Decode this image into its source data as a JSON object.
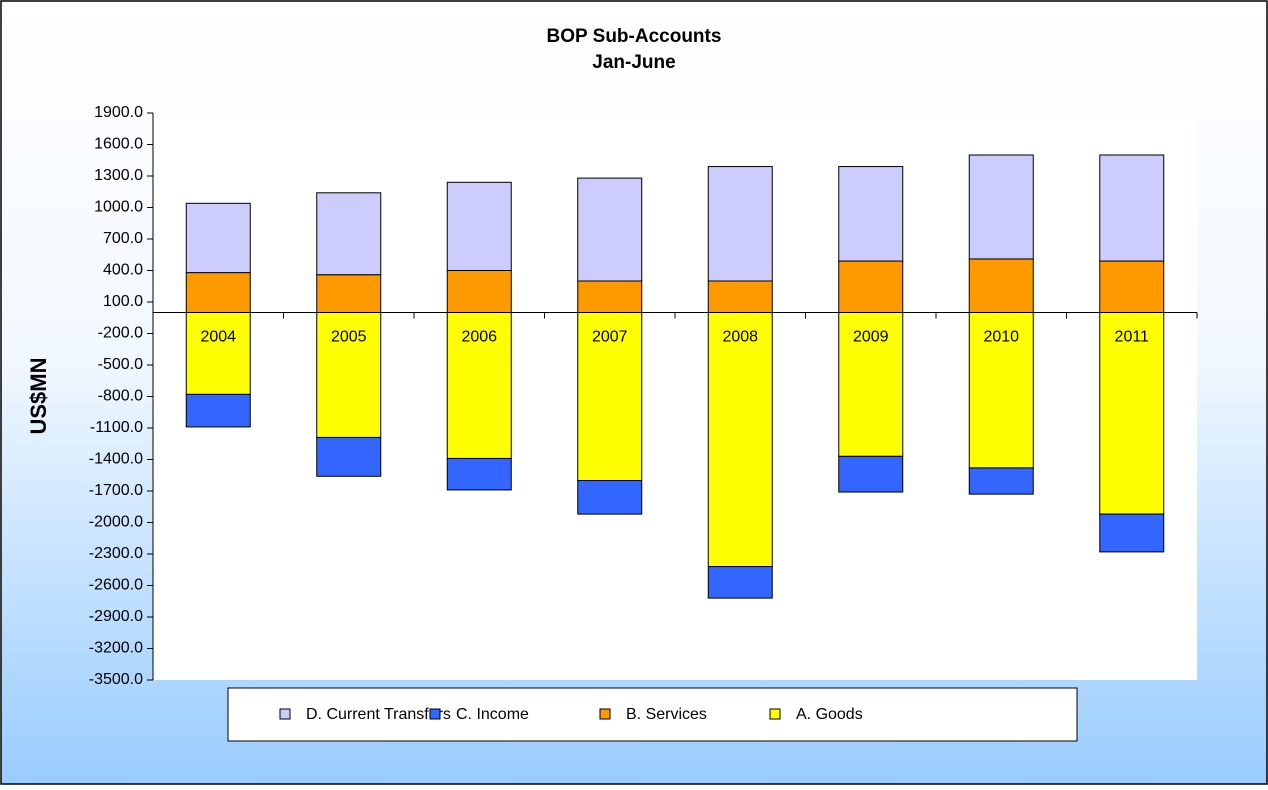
{
  "chart_data": {
    "type": "stacked_bar",
    "title": "BOP Sub-Accounts",
    "subtitle": "Jan-June",
    "y_label": "US$MN",
    "categories": [
      "2004",
      "2005",
      "2006",
      "2007",
      "2008",
      "2009",
      "2010",
      "2011"
    ],
    "series": [
      {
        "name": "D. Current Transfers",
        "color": "#ccccff",
        "values": [
          660,
          780,
          840,
          980,
          1090,
          900,
          990,
          1010
        ]
      },
      {
        "name": "C. Income",
        "color": "#3366ff",
        "values": [
          -310,
          -370,
          -300,
          -320,
          -300,
          -340,
          -250,
          -360
        ]
      },
      {
        "name": "B. Services",
        "color": "#ff9900",
        "values": [
          380,
          360,
          400,
          300,
          300,
          490,
          510,
          490
        ]
      },
      {
        "name": "A. Goods",
        "color": "#ffff00",
        "values": [
          -780,
          -1190,
          -1390,
          -1600,
          -2420,
          -1370,
          -1480,
          -1920
        ]
      }
    ],
    "ylim": [
      -3500,
      1900
    ],
    "yticks": [
      {
        "value": 1900,
        "label": "1900.0"
      },
      {
        "value": 1600,
        "label": "1600.0"
      },
      {
        "value": 1300,
        "label": "1300.0"
      },
      {
        "value": 1000,
        "label": "1000.0"
      },
      {
        "value": 700,
        "label": "700.0"
      },
      {
        "value": 400,
        "label": "400.0"
      },
      {
        "value": 100,
        "label": "100.0"
      },
      {
        "value": -200,
        "label": "-200.0"
      },
      {
        "value": -500,
        "label": "-500.0"
      },
      {
        "value": -800,
        "label": "-800.0"
      },
      {
        "value": -1100,
        "label": "-1100.0"
      },
      {
        "value": -1400,
        "label": "-1400.0"
      },
      {
        "value": -1700,
        "label": "-1700.0"
      },
      {
        "value": -2000,
        "label": "-2000.0"
      },
      {
        "value": -2300,
        "label": "-2300.0"
      },
      {
        "value": -2600,
        "label": "-2600.0"
      },
      {
        "value": -2900,
        "label": "-2900.0"
      },
      {
        "value": -3200,
        "label": "-3200.0"
      },
      {
        "value": -3500,
        "label": "-3500.0"
      }
    ],
    "legend": "bottom"
  }
}
